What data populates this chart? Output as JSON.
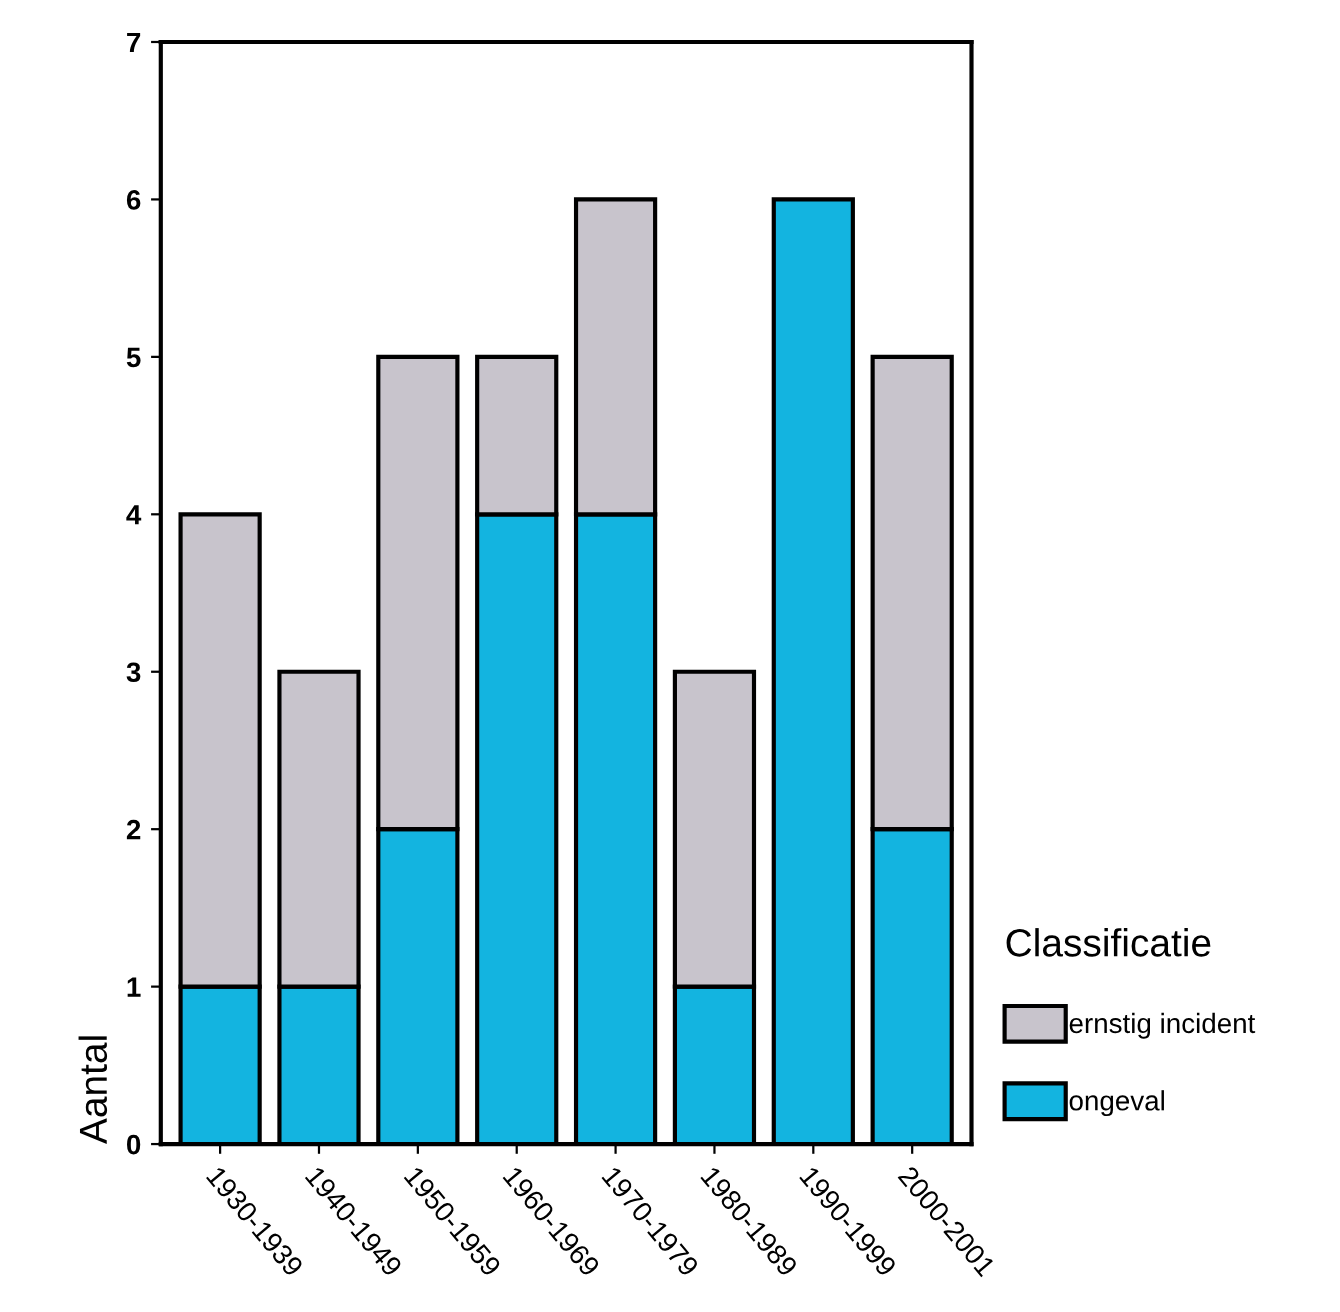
{
  "chart_data": {
    "type": "bar",
    "stacked": true,
    "xlabel": null,
    "ylabel": "Aantal",
    "legend_title": "Classificatie",
    "legend": "right",
    "categories": [
      "1930-1939",
      "1940-1949",
      "1950-1959",
      "1960-1969",
      "1970-1979",
      "1980-1989",
      "1990-1999",
      "2000-2001"
    ],
    "series": [
      {
        "name": "ongeval",
        "color": "#13b4e0",
        "values": [
          1,
          1,
          2,
          4,
          4,
          1,
          6,
          2
        ]
      },
      {
        "name": "ernstig incident",
        "color": "#c8c4cc",
        "values": [
          3,
          2,
          3,
          1,
          2,
          2,
          null,
          3
        ]
      }
    ],
    "ylim": [
      0,
      7
    ],
    "yticks": [
      0,
      1,
      2,
      3,
      4,
      5,
      6,
      7
    ],
    "grid": false
  }
}
